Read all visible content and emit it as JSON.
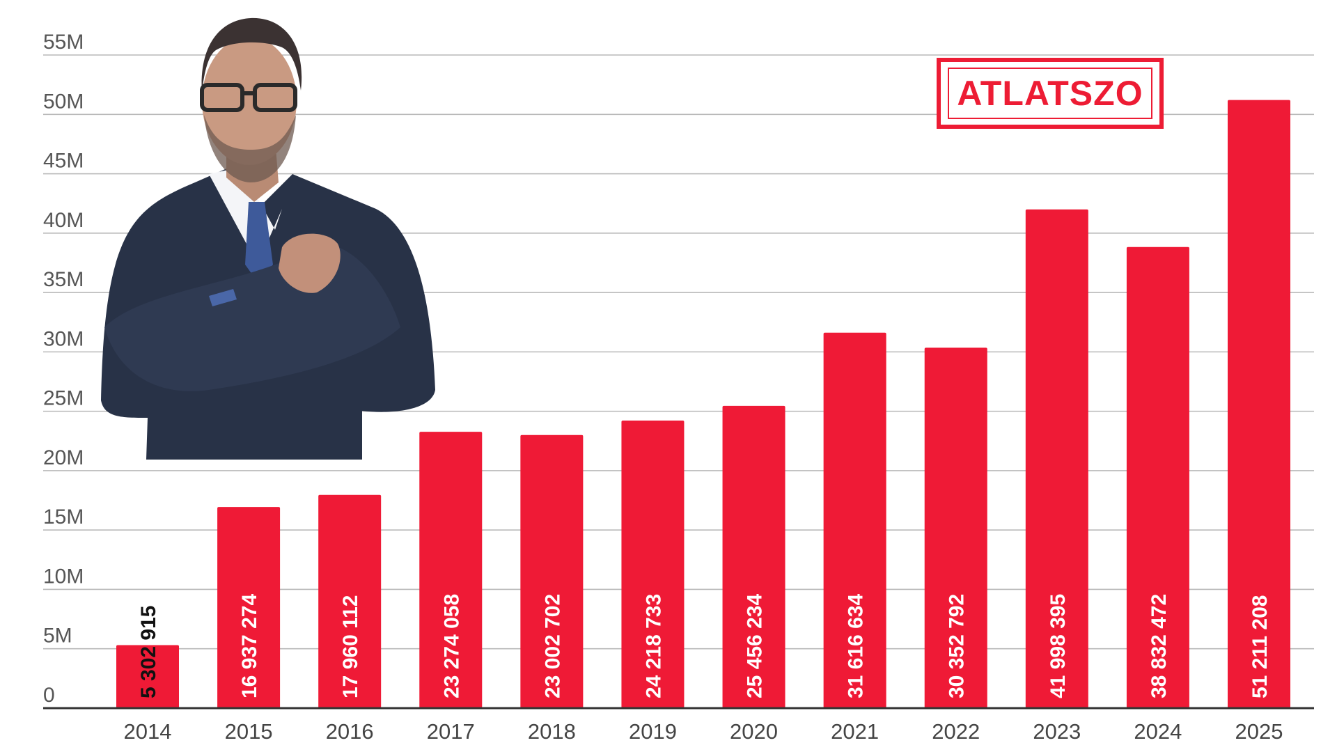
{
  "brand": {
    "logo_text": "ATLATSZO",
    "color": "#ed1c34"
  },
  "photo": {
    "subject": "man-in-suit-portrait"
  },
  "colors": {
    "bar": "#ef1a36",
    "grid": "#b8b8b8",
    "axis": "#333333",
    "label_inside": "#ffffff",
    "label_outside": "#111111"
  },
  "chart_data": {
    "type": "bar",
    "title": "",
    "xlabel": "",
    "ylabel": "",
    "ylim": [
      0,
      55000000
    ],
    "yticks": [
      {
        "value": 0,
        "label": "0"
      },
      {
        "value": 5000000,
        "label": "5M"
      },
      {
        "value": 10000000,
        "label": "10M"
      },
      {
        "value": 15000000,
        "label": "15M"
      },
      {
        "value": 20000000,
        "label": "20M"
      },
      {
        "value": 25000000,
        "label": "25M"
      },
      {
        "value": 30000000,
        "label": "30M"
      },
      {
        "value": 35000000,
        "label": "35M"
      },
      {
        "value": 40000000,
        "label": "40M"
      },
      {
        "value": 45000000,
        "label": "45M"
      },
      {
        "value": 50000000,
        "label": "50M"
      },
      {
        "value": 55000000,
        "label": "55M"
      }
    ],
    "grid": true,
    "legend": "none",
    "categories": [
      "2014",
      "2015",
      "2016",
      "2017",
      "2018",
      "2019",
      "2020",
      "2021",
      "2022",
      "2023",
      "2024",
      "2025"
    ],
    "values": [
      5302915,
      16937274,
      17960112,
      23274058,
      23002702,
      24218733,
      25456234,
      31616634,
      30352792,
      41998395,
      38832472,
      51211208
    ],
    "value_labels": [
      "5 302 915",
      "16 937 274",
      "17 960 112",
      "23 274 058",
      "23 002 702",
      "24 218 733",
      "25 456 234",
      "31 616 634",
      "30 352 792",
      "41 998 395",
      "38 832 472",
      "51 211 208"
    ]
  }
}
